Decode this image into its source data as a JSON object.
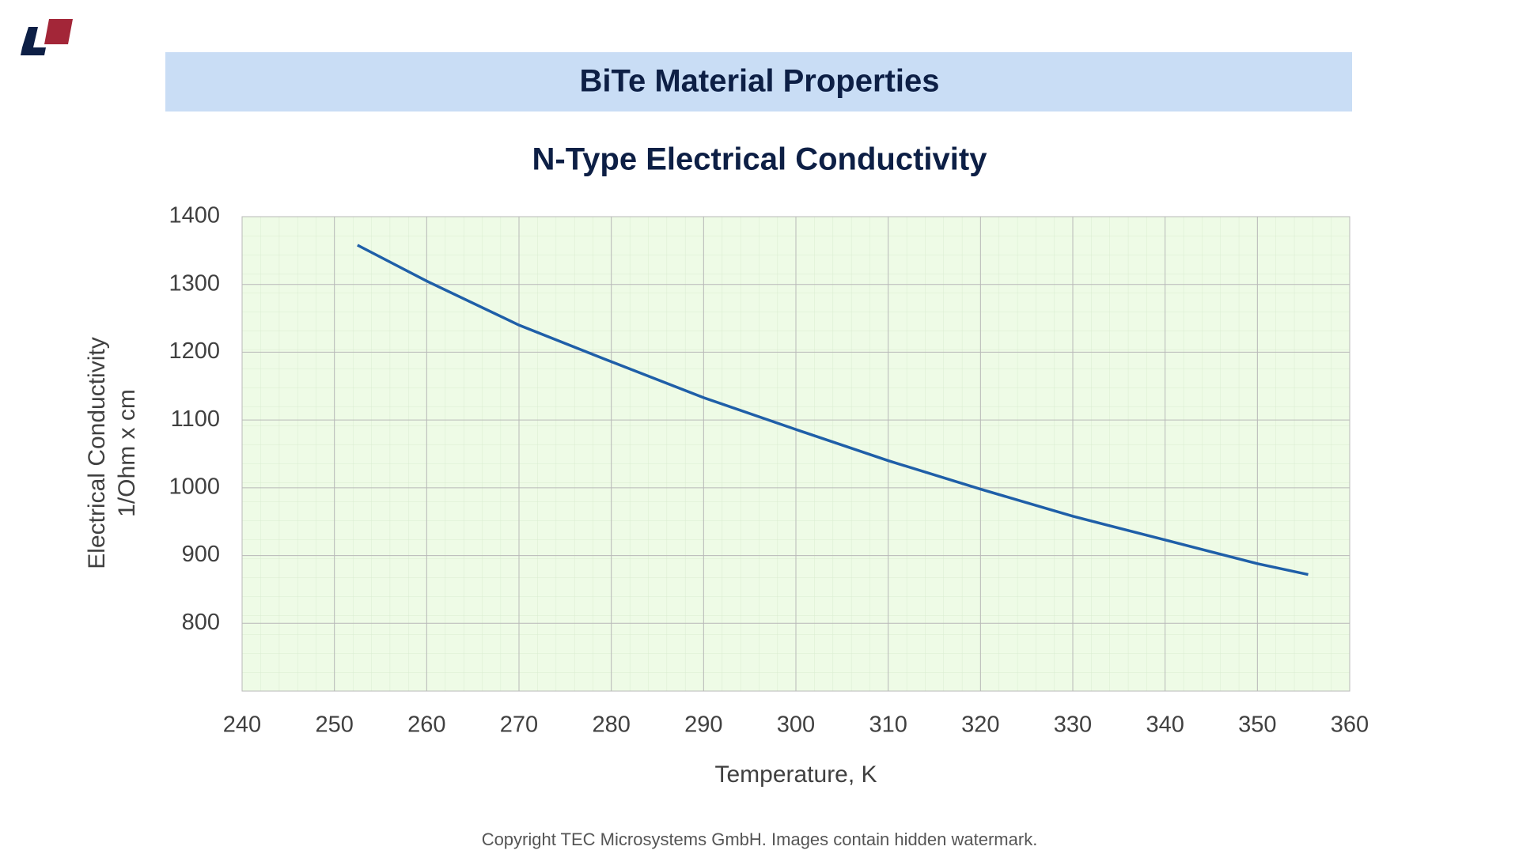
{
  "header": {
    "title": "BiTe Material Properties"
  },
  "chart_data": {
    "type": "line",
    "title": "N-Type  Electrical Conductivity",
    "xlabel": "Temperature, K",
    "ylabel": [
      "Electrical Conductivity",
      "1/Ohm x cm"
    ],
    "x": [
      252.5,
      260,
      270,
      280,
      290,
      300,
      310,
      320,
      330,
      340,
      350,
      355.5
    ],
    "series": [
      {
        "name": "N-Type",
        "color": "#1f5fa8",
        "values": [
          1358,
          1305,
          1240,
          1186,
          1133,
          1086,
          1040,
          998,
          958,
          923,
          888,
          872
        ]
      }
    ],
    "xlim": [
      240,
      360
    ],
    "xticks": [
      240,
      250,
      260,
      270,
      280,
      290,
      300,
      310,
      320,
      330,
      340,
      350,
      360
    ],
    "ylim": [
      700,
      1400
    ],
    "yticks": [
      800,
      900,
      1000,
      1100,
      1200,
      1300,
      1400
    ],
    "grid": true
  },
  "footer": {
    "copyright": "Copyright TEC Microsystems GmbH. Images contain hidden watermark."
  }
}
